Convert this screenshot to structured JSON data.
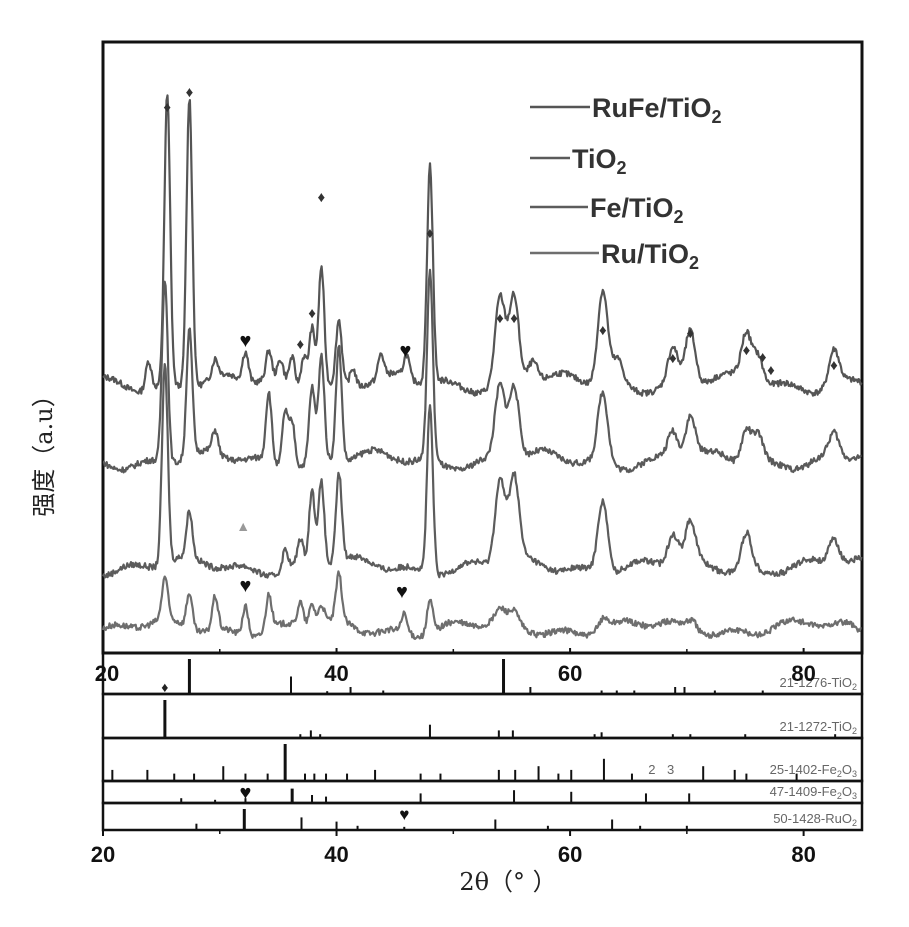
{
  "chart_data": {
    "type": "line",
    "xlabel": "2θ（°  ）",
    "ylabel": "强度（a.u）",
    "xlim": [
      20,
      85
    ],
    "x_ticks": [
      "20",
      "40",
      "60",
      "80"
    ],
    "inner_x_ticks": [
      "20",
      "40",
      "60",
      "80"
    ],
    "legend_position": "top-right",
    "series": [
      {
        "name": "RuFe/TiO2",
        "legend_main": "RuFe/TiO",
        "legend_sub": "2",
        "color": "#555555",
        "peaks": [
          [
            23.9,
            0.1
          ],
          [
            25.5,
            1.0
          ],
          [
            27.4,
            1.0
          ],
          [
            29.6,
            0.06
          ],
          [
            32.2,
            0.1
          ],
          [
            34.2,
            0.1
          ],
          [
            35.2,
            0.07
          ],
          [
            36.2,
            0.1
          ],
          [
            37.2,
            0.12
          ],
          [
            37.9,
            0.22
          ],
          [
            38.7,
            0.42
          ],
          [
            40.2,
            0.22
          ],
          [
            41.4,
            0.06
          ],
          [
            43.8,
            0.08
          ],
          [
            46.0,
            0.08
          ],
          [
            48.0,
            0.75
          ],
          [
            54.0,
            0.3
          ],
          [
            55.2,
            0.3
          ],
          [
            56.8,
            0.08
          ],
          [
            62.8,
            0.32
          ],
          [
            64.1,
            0.08
          ],
          [
            68.8,
            0.12
          ],
          [
            70.3,
            0.18
          ],
          [
            75.1,
            0.16
          ],
          [
            76.1,
            0.1
          ],
          [
            82.6,
            0.12
          ]
        ]
      },
      {
        "name": "TiO2",
        "legend_main": "TiO",
        "legend_sub": "2",
        "color": "#5a5a5a",
        "peaks": [
          [
            25.3,
            0.8
          ],
          [
            27.4,
            0.55
          ],
          [
            29.6,
            0.1
          ],
          [
            34.2,
            0.3
          ],
          [
            35.6,
            0.25
          ],
          [
            36.2,
            0.2
          ],
          [
            37.9,
            0.32
          ],
          [
            38.7,
            0.45
          ],
          [
            40.2,
            0.5
          ],
          [
            48.0,
            0.82
          ],
          [
            54.0,
            0.32
          ],
          [
            55.2,
            0.32
          ],
          [
            62.8,
            0.3
          ],
          [
            68.8,
            0.12
          ],
          [
            70.3,
            0.18
          ],
          [
            75.1,
            0.15
          ],
          [
            76.1,
            0.12
          ],
          [
            82.6,
            0.1
          ]
        ]
      },
      {
        "name": "Fe/TiO2",
        "legend_main": "Fe/TiO",
        "legend_sub": "2",
        "color": "#5c5c5c",
        "peaks": [
          [
            25.3,
            0.95
          ],
          [
            27.4,
            0.22
          ],
          [
            35.6,
            0.1
          ],
          [
            36.9,
            0.12
          ],
          [
            37.9,
            0.35
          ],
          [
            38.7,
            0.4
          ],
          [
            40.2,
            0.42
          ],
          [
            48.0,
            0.8
          ],
          [
            54.0,
            0.4
          ],
          [
            55.2,
            0.4
          ],
          [
            62.8,
            0.35
          ],
          [
            68.8,
            0.14
          ],
          [
            70.3,
            0.18
          ],
          [
            75.1,
            0.17
          ],
          [
            82.6,
            0.12
          ]
        ]
      },
      {
        "name": "Ru/TiO2",
        "legend_main": "Ru/TiO",
        "legend_sub": "2",
        "color": "#6e6e6e",
        "peaks": [
          [
            25.3,
            0.35
          ],
          [
            27.4,
            0.3
          ],
          [
            29.6,
            0.28
          ],
          [
            32.2,
            0.25
          ],
          [
            34.2,
            0.3
          ],
          [
            36.9,
            0.2
          ],
          [
            37.9,
            0.18
          ],
          [
            38.7,
            0.15
          ],
          [
            40.2,
            0.38
          ],
          [
            45.8,
            0.15
          ],
          [
            48.0,
            0.28
          ],
          [
            54.0,
            0.1
          ],
          [
            55.2,
            0.1
          ],
          [
            62.8,
            0.1
          ],
          [
            70.5,
            0.08
          ]
        ]
      }
    ],
    "reference_patterns": [
      {
        "main": "21-1276-TiO",
        "sub": "2",
        "lines": [
          [
            27.4,
            1.0
          ],
          [
            36.1,
            0.5
          ],
          [
            39.2,
            0.08
          ],
          [
            41.2,
            0.2
          ],
          [
            44.0,
            0.1
          ],
          [
            54.3,
            1.0
          ],
          [
            56.6,
            0.2
          ],
          [
            62.7,
            0.1
          ],
          [
            64.0,
            0.1
          ],
          [
            65.5,
            0.1
          ],
          [
            69.0,
            0.2
          ],
          [
            69.8,
            0.2
          ],
          [
            72.4,
            0.1
          ],
          [
            76.5,
            0.1
          ]
        ]
      },
      {
        "main": "21-1272-TiO",
        "sub": "2",
        "lines": [
          [
            25.3,
            1.0
          ],
          [
            36.9,
            0.1
          ],
          [
            37.8,
            0.2
          ],
          [
            38.6,
            0.1
          ],
          [
            48.0,
            0.35
          ],
          [
            53.9,
            0.2
          ],
          [
            55.1,
            0.2
          ],
          [
            62.1,
            0.1
          ],
          [
            62.7,
            0.15
          ],
          [
            68.8,
            0.1
          ],
          [
            70.3,
            0.1
          ],
          [
            75.0,
            0.1
          ],
          [
            82.7,
            0.1
          ]
        ]
      },
      {
        "main": "25-1402-Fe",
        "sub": "2",
        "tail": "O",
        "tail_sub": "3",
        "lines": [
          [
            20.8,
            0.3
          ],
          [
            23.8,
            0.3
          ],
          [
            26.1,
            0.2
          ],
          [
            27.8,
            0.2
          ],
          [
            30.3,
            0.4
          ],
          [
            32.2,
            0.2
          ],
          [
            34.1,
            0.2
          ],
          [
            35.6,
            1.0
          ],
          [
            37.3,
            0.2
          ],
          [
            38.1,
            0.2
          ],
          [
            39.1,
            0.2
          ],
          [
            40.9,
            0.2
          ],
          [
            43.3,
            0.3
          ],
          [
            47.2,
            0.2
          ],
          [
            48.9,
            0.2
          ],
          [
            53.9,
            0.3
          ],
          [
            55.3,
            0.3
          ],
          [
            57.3,
            0.4
          ],
          [
            59.0,
            0.2
          ],
          [
            60.1,
            0.3
          ],
          [
            62.9,
            0.6
          ],
          [
            65.3,
            0.2
          ],
          [
            71.4,
            0.4
          ],
          [
            74.1,
            0.3
          ],
          [
            75.1,
            0.2
          ],
          [
            79.4,
            0.2
          ]
        ]
      },
      {
        "main": "47-1409-Fe",
        "sub": "2",
        "tail": "O",
        "tail_sub": "3",
        "lines": [
          [
            26.7,
            0.3
          ],
          [
            29.6,
            0.2
          ],
          [
            32.2,
            0.3
          ],
          [
            36.2,
            0.9
          ],
          [
            37.9,
            0.5
          ],
          [
            39.1,
            0.4
          ],
          [
            47.2,
            0.6
          ],
          [
            55.2,
            0.8
          ],
          [
            60.1,
            0.7
          ],
          [
            66.5,
            0.6
          ],
          [
            70.2,
            0.6
          ]
        ]
      },
      {
        "main": "50-1428-RuO",
        "sub": "2",
        "lines": [
          [
            28.0,
            0.3
          ],
          [
            32.1,
            1.0
          ],
          [
            37.0,
            0.6
          ],
          [
            40.0,
            0.4
          ],
          [
            41.8,
            0.2
          ],
          [
            45.8,
            0.15
          ],
          [
            53.6,
            0.5
          ],
          [
            58.1,
            0.2
          ],
          [
            63.6,
            0.5
          ],
          [
            66.0,
            0.2
          ],
          [
            70.0,
            0.2
          ]
        ]
      }
    ],
    "annotations": {
      "diamond_symbol": "♦",
      "heart_symbol": "♥",
      "triangle_symbol": "▲",
      "diamond_x": [
        25.5,
        27.4,
        36.9,
        37.9,
        38.7,
        48.0,
        54.0,
        55.2,
        62.8,
        68.8,
        70.3,
        75.1,
        76.5,
        77.2,
        82.6
      ],
      "heart_top_x": [
        32.2,
        45.9
      ],
      "heart_bottom_x": [
        32.2,
        45.6
      ],
      "triangle_x": [
        32.0
      ],
      "heart_ref_x": [
        32.2,
        45.8
      ],
      "diamond_ref_x": [
        25.3
      ]
    },
    "ref_extra_marks": {
      "fe2o3_a": "2",
      "fe2o3_b": "3"
    }
  }
}
